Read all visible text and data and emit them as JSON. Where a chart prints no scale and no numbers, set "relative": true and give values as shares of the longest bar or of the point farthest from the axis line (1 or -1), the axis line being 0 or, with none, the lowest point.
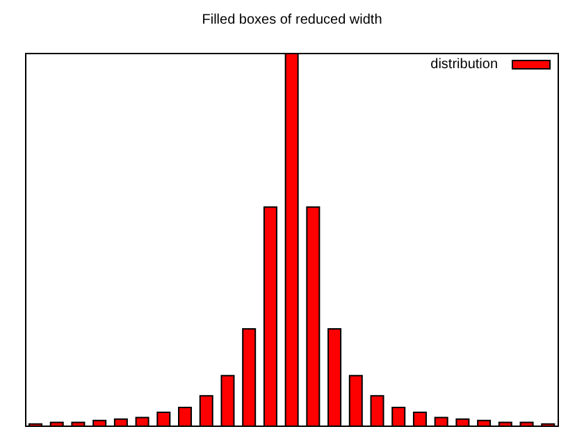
{
  "chart_data": {
    "type": "bar",
    "title": "Filled boxes of reduced width",
    "relative": true,
    "legend": "top right",
    "categories": [
      null,
      null,
      null,
      null,
      null,
      null,
      null,
      null,
      null,
      null,
      null,
      null,
      null,
      null,
      null,
      null,
      null,
      null,
      null,
      null,
      null,
      null,
      null,
      null,
      null
    ],
    "series": [
      {
        "name": "distribution",
        "color": "#ff0000",
        "values": [
          0.008,
          0.012,
          0.012,
          0.017,
          0.021,
          0.025,
          0.039,
          0.052,
          0.083,
          0.137,
          0.262,
          0.588,
          1,
          0.588,
          0.262,
          0.137,
          0.083,
          0.052,
          0.039,
          0.025,
          0.021,
          0.017,
          0.012,
          0.012,
          0.008
        ]
      }
    ]
  }
}
